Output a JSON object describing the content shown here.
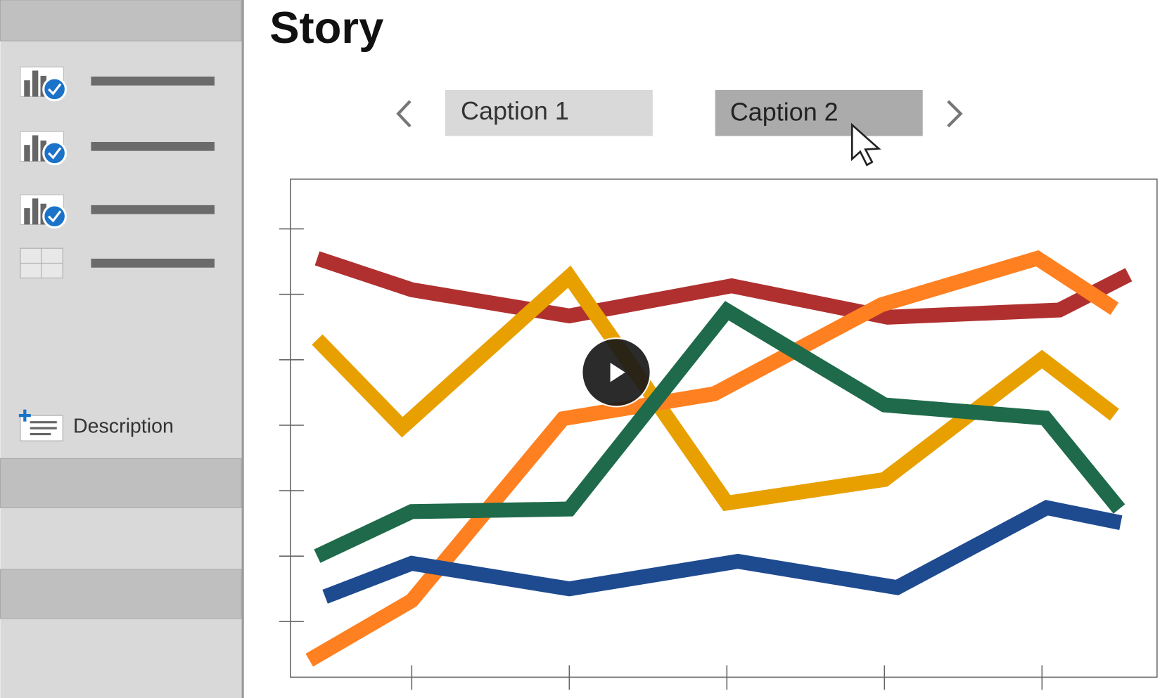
{
  "header": {
    "title": "Story"
  },
  "captions": [
    "Caption 1",
    "Caption 2"
  ],
  "sidebar": {
    "description": "Description"
  },
  "chart_data": {
    "type": "line",
    "xlim": [
      0.23,
      5.73
    ],
    "ylim": [
      -0.85,
      6.76
    ],
    "xticks": [
      1,
      2,
      3,
      4,
      5
    ],
    "yticks": [
      0,
      1,
      2,
      3,
      4,
      5,
      6
    ],
    "series": [
      {
        "color": "#b03030",
        "x": [
          0.4,
          1,
          2,
          3.03,
          4.02,
          5.11,
          5.55
        ],
        "values": [
          5.55,
          5.07,
          4.67,
          5.13,
          4.65,
          4.76,
          5.3
        ]
      },
      {
        "color": "#e8a000",
        "x": [
          0.4,
          0.94,
          2,
          3,
          4,
          5,
          5.46
        ],
        "values": [
          4.31,
          2.97,
          5.27,
          1.81,
          2.17,
          4.01,
          3.16
        ]
      },
      {
        "color": "#ff8020",
        "x": [
          0.35,
          1,
          1.96,
          2.92,
          3.98,
          4.97,
          5.46
        ],
        "values": [
          -0.59,
          0.32,
          3.1,
          3.48,
          4.84,
          5.55,
          4.78
        ]
      },
      {
        "color": "#1e6a4a",
        "x": [
          0.4,
          1,
          2,
          3,
          4,
          5.02,
          5.49
        ],
        "values": [
          1.0,
          1.68,
          1.72,
          4.75,
          3.31,
          3.11,
          1.72
        ]
      },
      {
        "color": "#1e4a90",
        "x": [
          0.45,
          1,
          2,
          3.07,
          4.08,
          5.03,
          5.5
        ],
        "values": [
          0.38,
          0.89,
          0.5,
          0.92,
          0.52,
          1.74,
          1.51
        ]
      }
    ]
  }
}
